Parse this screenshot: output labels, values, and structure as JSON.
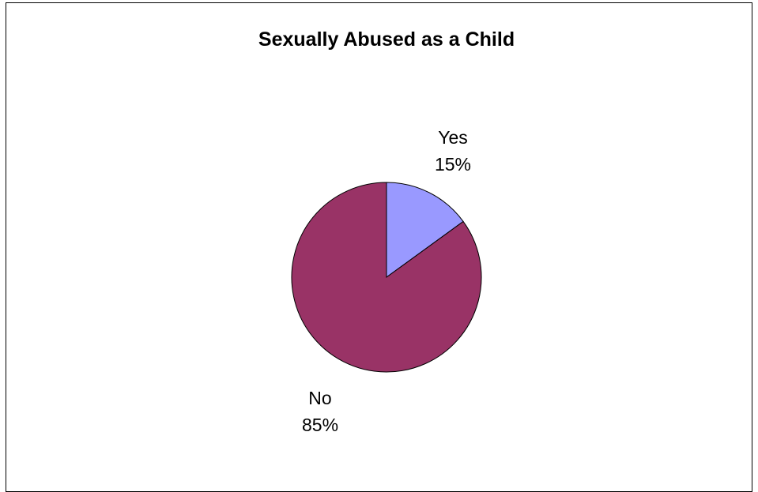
{
  "chart_data": {
    "type": "pie",
    "title": "Sexually Abused as a Child",
    "start_angle_deg": 0,
    "direction": "clockwise",
    "slices": [
      {
        "category": "Yes",
        "value": 15,
        "percent_label": "15%",
        "color": "#9999FF"
      },
      {
        "category": "No",
        "value": 85,
        "percent_label": "85%",
        "color": "#993366"
      }
    ],
    "legend": "none"
  }
}
